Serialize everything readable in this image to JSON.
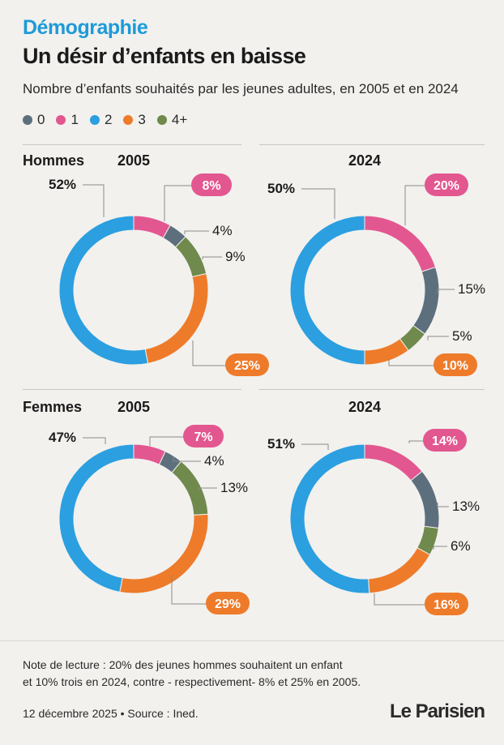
{
  "header": {
    "kicker": "Démographie",
    "title": "Un désir d’enfants en baisse",
    "subtitle": "Nombre d’enfants souhaités par les jeunes adultes, en 2005 et en 2024"
  },
  "legend": [
    {
      "label": "0",
      "color": "#5d6f7c"
    },
    {
      "label": "1",
      "color": "#e35790"
    },
    {
      "label": "2",
      "color": "#2b9fe0"
    },
    {
      "label": "3",
      "color": "#ee7b2a"
    },
    {
      "label": "4+",
      "color": "#6f8a4c"
    }
  ],
  "panels": {
    "hommes": "Hommes",
    "femmes": "Femmes",
    "year_2005": "2005",
    "year_2024": "2024"
  },
  "chart_data": [
    {
      "type": "pie",
      "title": "Hommes 2005",
      "categories": [
        "1",
        "0",
        "4+",
        "3",
        "2"
      ],
      "values": [
        8,
        4,
        9,
        25,
        52
      ],
      "labels": [
        "8%",
        "4%",
        "9%",
        "25%",
        "52%"
      ]
    },
    {
      "type": "pie",
      "title": "Hommes 2024",
      "categories": [
        "1",
        "0",
        "4+",
        "3",
        "2"
      ],
      "values": [
        20,
        15,
        5,
        10,
        50
      ],
      "labels": [
        "20%",
        "15%",
        "5%",
        "10%",
        "50%"
      ]
    },
    {
      "type": "pie",
      "title": "Femmes 2005",
      "categories": [
        "1",
        "0",
        "4+",
        "3",
        "2"
      ],
      "values": [
        7,
        4,
        13,
        29,
        47
      ],
      "labels": [
        "7%",
        "4%",
        "13%",
        "29%",
        "47%"
      ]
    },
    {
      "type": "pie",
      "title": "Femmes 2024",
      "categories": [
        "1",
        "0",
        "4+",
        "3",
        "2"
      ],
      "values": [
        14,
        13,
        6,
        16,
        51
      ],
      "labels": [
        "14%",
        "13%",
        "6%",
        "16%",
        "51%"
      ]
    }
  ],
  "note": {
    "line1": "Note de lecture : 20% des jeunes hommes souhaitent un enfant",
    "line2": "et 10% trois en 2024, contre - respectivement- 8% et 25% en 2005."
  },
  "footer": {
    "source": "12 décembre 2025 • Source : Ined.",
    "logo": "Le Parisien"
  }
}
